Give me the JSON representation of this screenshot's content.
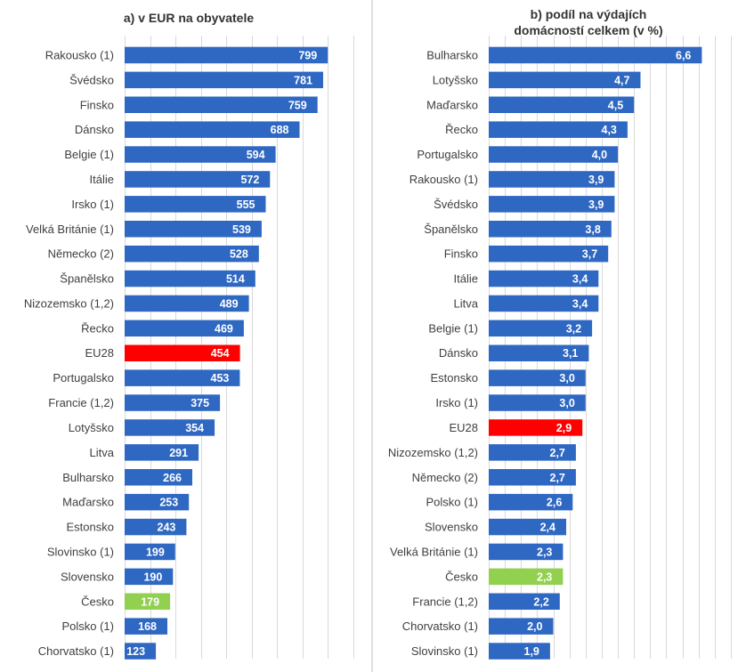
{
  "colors": {
    "bar": "#2f68c2",
    "eu": "#ff0000",
    "cz": "#92d050",
    "grid": "#d9d9d9"
  },
  "chart_data": [
    {
      "type": "bar",
      "orientation": "horizontal",
      "title": "a) v EUR na obyvatele",
      "categories": [
        "Rakousko (1)",
        "Švédsko",
        "Finsko",
        "Dánsko",
        "Belgie (1)",
        "Itálie",
        "Irsko (1)",
        "Velká Británie (1)",
        "Německo (2)",
        "Španělsko",
        "Nizozemsko (1,2)",
        "Řecko",
        "EU28",
        "Portugalsko",
        "Francie (1,2)",
        "Lotyšsko",
        "Litva",
        "Bulharsko",
        "Maďarsko",
        "Estonsko",
        "Slovinsko (1)",
        "Slovensko",
        "Česko",
        "Polsko (1)",
        "Chorvatsko (1)"
      ],
      "values": [
        799,
        781,
        759,
        688,
        594,
        572,
        555,
        539,
        528,
        514,
        489,
        469,
        454,
        453,
        375,
        354,
        291,
        266,
        253,
        243,
        199,
        190,
        179,
        168,
        123
      ],
      "value_labels": [
        "799",
        "781",
        "759",
        "688",
        "594",
        "572",
        "555",
        "539",
        "528",
        "514",
        "489",
        "469",
        "454",
        "453",
        "375",
        "354",
        "291",
        "266",
        "253",
        "243",
        "199",
        "190",
        "179",
        "168",
        "123"
      ],
      "highlight": {
        "EU28": "eu",
        "Česko": "cz"
      },
      "xlim": [
        0,
        900
      ],
      "grid": true
    },
    {
      "type": "bar",
      "orientation": "horizontal",
      "title": "b) podíl na výdajích domácností celkem (v %)",
      "title_lines": [
        "b) podíl na výdajích",
        "domácností celkem (v %)"
      ],
      "categories": [
        "Bulharsko",
        "Lotyšsko",
        "Maďarsko",
        "Řecko",
        "Portugalsko",
        "Rakousko (1)",
        "Švédsko",
        "Španělsko",
        "Finsko",
        "Itálie",
        "Litva",
        "Belgie (1)",
        "Dánsko",
        "Estonsko",
        "Irsko (1)",
        "EU28",
        "Nizozemsko (1,2)",
        "Německo (2)",
        "Polsko (1)",
        "Slovensko",
        "Velká Británie (1)",
        "Česko",
        "Francie (1,2)",
        "Chorvatsko (1)",
        "Slovinsko (1)"
      ],
      "values": [
        6.6,
        4.7,
        4.5,
        4.3,
        4.0,
        3.9,
        3.9,
        3.8,
        3.7,
        3.4,
        3.4,
        3.2,
        3.1,
        3.0,
        3.0,
        2.9,
        2.7,
        2.7,
        2.6,
        2.4,
        2.3,
        2.3,
        2.2,
        2.0,
        1.9
      ],
      "value_labels": [
        "6,6",
        "4,7",
        "4,5",
        "4,3",
        "4,0",
        "3,9",
        "3,9",
        "3,8",
        "3,7",
        "3,4",
        "3,4",
        "3,2",
        "3,1",
        "3,0",
        "3,0",
        "2,9",
        "2,7",
        "2,7",
        "2,6",
        "2,4",
        "2,3",
        "2,3",
        "2,2",
        "2,0",
        "1,9"
      ],
      "highlight": {
        "EU28": "eu",
        "Česko": "cz"
      },
      "xlim": [
        0,
        7.5
      ],
      "grid": true
    }
  ]
}
